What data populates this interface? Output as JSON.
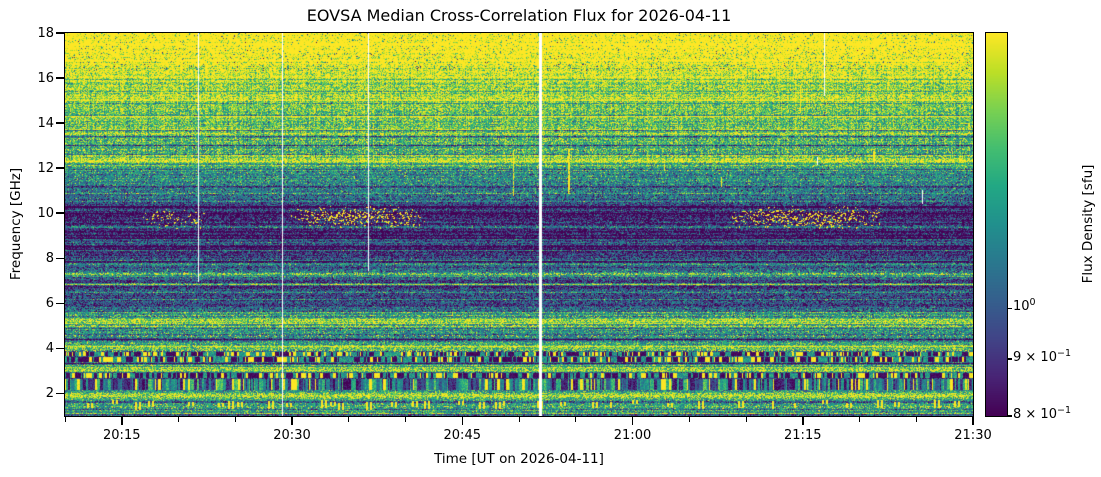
{
  "title": "EOVSA Median Cross-Correlation Flux for 2026-04-11",
  "axes": {
    "x": {
      "label": "Time [UT on 2026-04-11]",
      "start": "20:10",
      "end": "21:30",
      "major_ticks": [
        "20:15",
        "20:30",
        "20:45",
        "21:00",
        "21:15",
        "21:30"
      ],
      "minor_interval_minutes": 5
    },
    "y": {
      "label": "Frequency [GHz]",
      "min": 1,
      "max": 18,
      "ticks": [
        18,
        16,
        14,
        12,
        10,
        8,
        6,
        4,
        2
      ]
    }
  },
  "colorbar": {
    "label": "Flux Density [sfu]",
    "scale": "log",
    "vmin": 0.8,
    "vmax": 1.77,
    "colormap": "viridis",
    "ticks": [
      {
        "value": 1.0,
        "prefix": "10",
        "exp": "0"
      },
      {
        "value": 0.9,
        "prefix": "9 × 10",
        "exp": "−1"
      },
      {
        "value": 0.8,
        "prefix": "8 × 10",
        "exp": "−1"
      }
    ]
  },
  "chart_data": {
    "type": "heatmap",
    "title": "EOVSA Median Cross-Correlation Flux for 2026-04-11",
    "xlabel": "Time [UT on 2026-04-11]",
    "ylabel": "Frequency [GHz]",
    "x_range_ut": [
      "20:10",
      "21:30"
    ],
    "y_range_ghz": [
      1,
      18
    ],
    "flux_range_sfu": [
      0.8,
      1.77
    ],
    "seed": 42,
    "profile_ghz_sfu": [
      [
        1.0,
        1.22
      ],
      [
        1.15,
        1.28
      ],
      [
        1.35,
        1.3
      ],
      [
        1.55,
        1.26
      ],
      [
        1.7,
        1.3
      ],
      [
        1.82,
        1.38
      ],
      [
        1.9,
        1.62
      ],
      [
        1.98,
        1.45
      ],
      [
        2.05,
        1.28
      ],
      [
        2.15,
        1.22
      ],
      [
        2.2,
        1.15
      ],
      [
        2.64,
        1.15
      ],
      [
        2.69,
        0.85
      ],
      [
        2.91,
        0.85
      ],
      [
        2.97,
        1.5
      ],
      [
        3.1,
        1.62
      ],
      [
        3.18,
        1.55
      ],
      [
        3.3,
        1.38
      ],
      [
        3.4,
        1.0
      ],
      [
        3.62,
        1.0
      ],
      [
        3.66,
        1.25
      ],
      [
        3.7,
        1.0
      ],
      [
        3.86,
        1.0
      ],
      [
        3.95,
        1.32
      ],
      [
        4.1,
        1.38
      ],
      [
        4.25,
        1.2
      ],
      [
        4.4,
        1.02
      ],
      [
        4.55,
        1.18
      ],
      [
        4.75,
        1.22
      ],
      [
        4.95,
        1.28
      ],
      [
        5.15,
        1.32
      ],
      [
        5.35,
        1.35
      ],
      [
        5.5,
        1.22
      ],
      [
        5.65,
        1.1
      ],
      [
        5.85,
        1.0
      ],
      [
        6.1,
        0.97
      ],
      [
        6.4,
        0.95
      ],
      [
        6.6,
        0.92
      ],
      [
        6.7,
        0.82
      ],
      [
        6.78,
        0.84
      ],
      [
        6.84,
        1.78
      ],
      [
        6.92,
        0.82
      ],
      [
        7.0,
        0.95
      ],
      [
        7.15,
        1.1
      ],
      [
        7.32,
        1.38
      ],
      [
        7.45,
        1.08
      ],
      [
        7.6,
        1.0
      ],
      [
        7.8,
        0.97
      ],
      [
        8.05,
        0.94
      ],
      [
        8.3,
        0.9
      ],
      [
        8.6,
        0.88
      ],
      [
        9.0,
        0.87
      ],
      [
        9.4,
        0.865
      ],
      [
        9.8,
        0.87
      ],
      [
        10.1,
        0.885
      ],
      [
        10.35,
        0.93
      ],
      [
        10.55,
        1.0
      ],
      [
        10.75,
        1.08
      ],
      [
        11.0,
        1.12
      ],
      [
        11.3,
        1.13
      ],
      [
        11.6,
        1.17
      ],
      [
        11.85,
        1.2
      ],
      [
        12.1,
        1.24
      ],
      [
        12.2,
        1.3
      ],
      [
        12.28,
        1.82
      ],
      [
        12.36,
        1.82
      ],
      [
        12.45,
        1.34
      ],
      [
        12.7,
        1.32
      ],
      [
        13.0,
        1.3
      ],
      [
        13.3,
        1.33
      ],
      [
        13.7,
        1.38
      ],
      [
        14.1,
        1.42
      ],
      [
        14.5,
        1.46
      ],
      [
        14.9,
        1.51
      ],
      [
        15.3,
        1.57
      ],
      [
        15.7,
        1.64
      ],
      [
        16.1,
        1.73
      ],
      [
        16.5,
        1.84
      ],
      [
        16.9,
        1.93
      ],
      [
        17.3,
        2.0
      ],
      [
        18.0,
        2.05
      ]
    ],
    "dark_rows_ghz": [
      13.45,
      13.05,
      11.2,
      10.0,
      9.2,
      8.55,
      7.9,
      5.95,
      4.42,
      3.35,
      1.08
    ],
    "bright_rows_ghz": [
      15.05,
      14.3,
      13.55,
      12.6,
      10.9,
      9.45,
      8.85,
      5.3
    ],
    "speckle_rows": [
      [
        7.33,
        0.3
      ],
      [
        5.3,
        0.25
      ],
      [
        5.05,
        0.2
      ],
      [
        4.12,
        0.3
      ],
      [
        3.95,
        0.25
      ],
      [
        2.0,
        0.35
      ],
      [
        1.9,
        0.5
      ],
      [
        12.6,
        0.3
      ],
      [
        12.85,
        0.25
      ],
      [
        13.3,
        0.2
      ],
      [
        1.45,
        0.12
      ],
      [
        3.1,
        0.3
      ],
      [
        4.6,
        0.15
      ],
      [
        5.5,
        0.15
      ]
    ],
    "rfi_dash_bands": [
      {
        "f0": 2.69,
        "f1": 2.91,
        "density": 0.45
      },
      {
        "f0": 3.4,
        "f1": 3.6,
        "density": 0.4
      },
      {
        "f0": 3.68,
        "f1": 3.86,
        "density": 0.35
      }
    ],
    "stripe_band": {
      "f0": 2.2,
      "f1": 2.64
    },
    "bottom_dash_band": {
      "f0": 1.15,
      "f1": 1.7
    },
    "top_speckle": {
      "f_above": 16.3,
      "density": 0.045
    },
    "gap_lines": [
      {
        "x": 0.147,
        "f_bottom": 7.0,
        "w": 1
      },
      {
        "x": 0.239,
        "f_bottom": 1.0,
        "w": 1
      },
      {
        "x": 0.334,
        "f_bottom": 7.5,
        "w": 1
      },
      {
        "x": 0.522,
        "f_bottom": 1.0,
        "w": 3
      },
      {
        "x": 0.836,
        "f_bottom": 15.25,
        "w": 1
      }
    ],
    "dot_trails": [
      {
        "x0": 0.083,
        "x1": 0.155,
        "f0": 9.3,
        "f1": 10.2,
        "density": 0.05
      },
      {
        "x0": 0.248,
        "x1": 0.396,
        "f0": 9.4,
        "f1": 10.35,
        "density": 0.1
      },
      {
        "x0": 0.729,
        "x1": 0.898,
        "f0": 9.35,
        "f1": 10.3,
        "density": 0.11
      }
    ],
    "yellow_streaks": [
      {
        "x": 0.123,
        "f0": 14.9,
        "f1": 15.3,
        "w": 1
      },
      {
        "x": 0.493,
        "f0": 10.8,
        "f1": 12.8,
        "w": 1
      },
      {
        "x": 0.554,
        "f0": 10.9,
        "f1": 12.85,
        "w": 2
      },
      {
        "x": 0.723,
        "f0": 11.2,
        "f1": 11.6,
        "w": 1
      },
      {
        "x": 0.809,
        "f0": 14.5,
        "f1": 15.7,
        "w": 1
      },
      {
        "x": 0.89,
        "f0": 12.3,
        "f1": 12.75,
        "w": 2
      },
      {
        "x": 0.66,
        "f0": 11.9,
        "f1": 12.2,
        "w": 1
      }
    ],
    "white_dashes": [
      {
        "x": 0.828,
        "f0": 12.2,
        "f1": 12.5
      },
      {
        "x": 0.944,
        "f0": 10.45,
        "f1": 11.05
      }
    ]
  }
}
